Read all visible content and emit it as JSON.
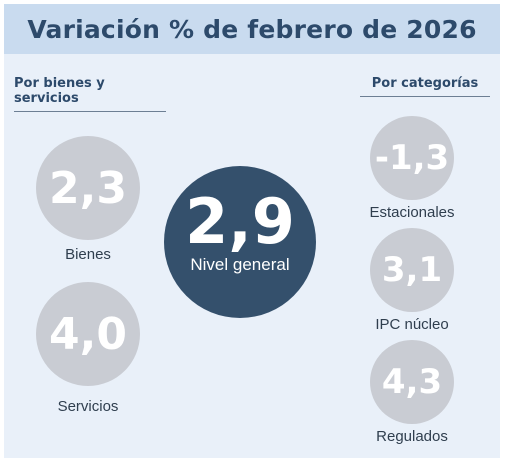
{
  "title": "Variación % de febrero de 2026",
  "left_section": {
    "heading": "Por bienes y servicios",
    "items": [
      {
        "value": "2,3",
        "label": "Bienes"
      },
      {
        "value": "4,0",
        "label": "Servicios"
      }
    ]
  },
  "center": {
    "value": "2,9",
    "label": "Nivel general"
  },
  "right_section": {
    "heading": "Por categorías",
    "items": [
      {
        "value": "-1,3",
        "label": "Estacionales"
      },
      {
        "value": "3,1",
        "label": "IPC núcleo"
      },
      {
        "value": "4,3",
        "label": "Regulados"
      }
    ]
  },
  "colors": {
    "title_bg": "#c9dbef",
    "card_bg": "#e9f0f9",
    "title_text": "#2d4a6b",
    "circle_grey": "#c9ccd3",
    "circle_center": "#34506c"
  }
}
